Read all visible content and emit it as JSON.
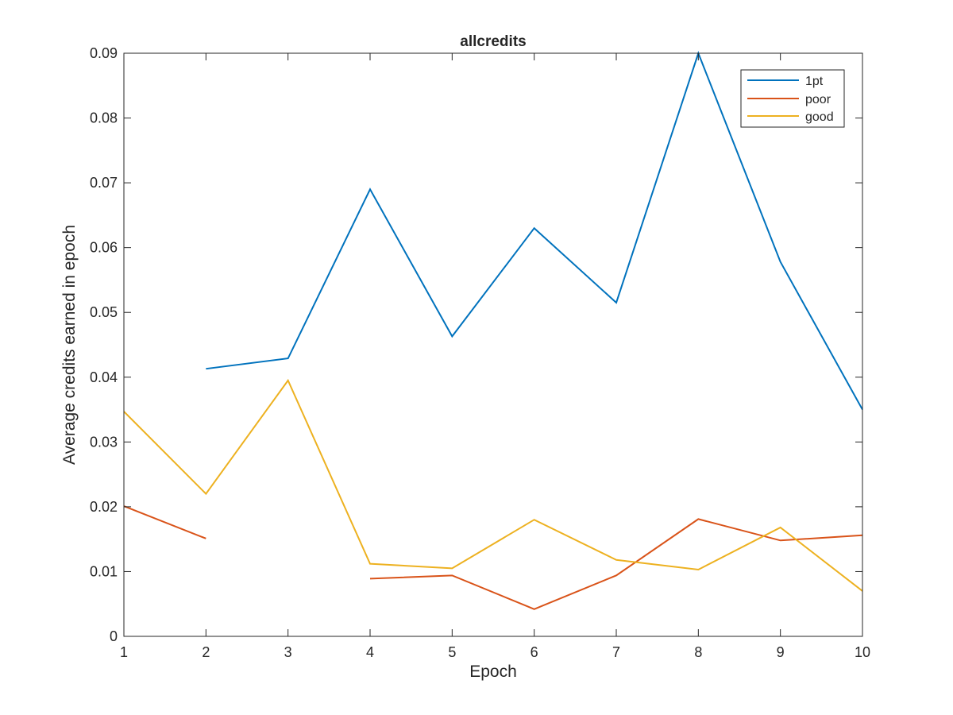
{
  "chart_data": {
    "type": "line",
    "title": "allcredits",
    "xlabel": "Epoch",
    "ylabel": "Average credits earned in epoch",
    "xlim": [
      1,
      10
    ],
    "ylim": [
      0,
      0.09
    ],
    "x": [
      1,
      2,
      3,
      4,
      5,
      6,
      7,
      8,
      9,
      10
    ],
    "x_tick_labels": [
      "1",
      "2",
      "3",
      "4",
      "5",
      "6",
      "7",
      "8",
      "9",
      "10"
    ],
    "y_ticks": [
      0,
      0.01,
      0.02,
      0.03,
      0.04,
      0.05,
      0.06,
      0.07,
      0.08,
      0.09
    ],
    "y_tick_labels": [
      "0",
      "0.01",
      "0.02",
      "0.03",
      "0.04",
      "0.05",
      "0.06",
      "0.07",
      "0.08",
      "0.09"
    ],
    "grid": false,
    "legend_position": "top-right",
    "series": [
      {
        "name": "1pt",
        "color": "#0072BD",
        "values": [
          null,
          0.0413,
          0.0429,
          0.069,
          0.0463,
          0.063,
          0.0515,
          0.09,
          0.0578,
          0.035
        ]
      },
      {
        "name": "poor",
        "color": "#D95319",
        "values": [
          0.0201,
          0.0151,
          null,
          0.0089,
          0.0094,
          0.0042,
          0.0094,
          0.0181,
          0.0148,
          0.0156
        ]
      },
      {
        "name": "good",
        "color": "#EDB120",
        "values": [
          0.0347,
          0.022,
          0.0395,
          0.0112,
          0.0105,
          0.018,
          0.0118,
          0.0103,
          0.0168,
          0.007
        ]
      }
    ]
  }
}
